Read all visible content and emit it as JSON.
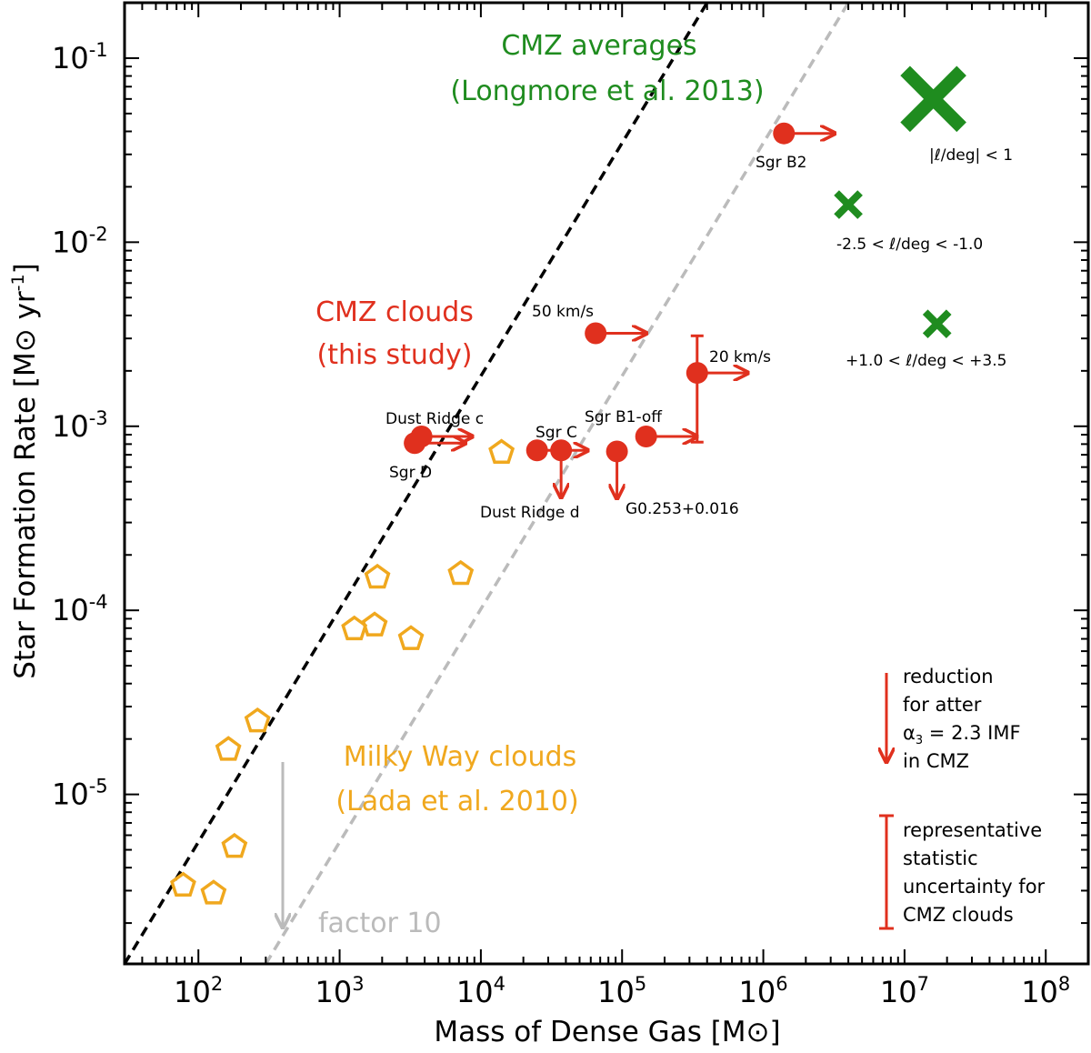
{
  "chart_data": {
    "type": "scatter",
    "xlabel": "Mass of Dense Gas  [M⊙]",
    "ylabel": "Star Formation Rate  [M⊙ yr",
    "ylabel_unit_exp": "-1",
    "ylabel_close": "]",
    "xscale": "log",
    "yscale": "log",
    "xlim": [
      30,
      200000000
    ],
    "ylim": [
      1.2e-06,
      0.2
    ],
    "x_tick_exponents": [
      "2",
      "3",
      "4",
      "5",
      "6",
      "7",
      "8"
    ],
    "y_tick_exponents": [
      "-5",
      "-4",
      "-3",
      "-2",
      "-1"
    ],
    "x_ticks": [
      100,
      1000,
      10000,
      100000,
      1000000,
      10000000,
      100000000
    ],
    "y_ticks": [
      1e-05,
      0.0001,
      0.001,
      0.01,
      0.1
    ],
    "tick_base": "10",
    "lines": [
      {
        "style": "dashed",
        "color": "#000000",
        "x": [
          30,
          400000
        ],
        "y": [
          1.2e-06,
          0.2
        ]
      },
      {
        "style": "dashed",
        "color": "#bbbbbb",
        "x": [
          300,
          4000000
        ],
        "y": [
          1.2e-06,
          0.2
        ]
      }
    ],
    "milky_way_clouds": {
      "color": "#f0a81e",
      "x": [
        78,
        128,
        180,
        163,
        262,
        1270,
        1770,
        1850,
        3200,
        7200,
        14000
      ],
      "y": [
        3.2e-06,
        2.9e-06,
        5.2e-06,
        1.75e-05,
        2.5e-05,
        7.9e-05,
        8.3e-05,
        0.000151,
        7e-05,
        0.000158,
        0.00072
      ]
    },
    "cmz_clouds": {
      "color": "#e0301e",
      "points": [
        {
          "name": "Dust Ridge c",
          "x": 3800,
          "y": 0.00088,
          "arrow": "right"
        },
        {
          "name": "Sgr D",
          "x": 3400,
          "y": 0.00081,
          "arrow": "right"
        },
        {
          "name": "Sgr C",
          "x": 25000,
          "y": 0.00074,
          "arrow": "right"
        },
        {
          "name": "Dust Ridge d",
          "x": 37000,
          "y": 0.00074,
          "arrow": "down"
        },
        {
          "name": "G0.253+0.016",
          "x": 92000,
          "y": 0.00073,
          "arrow": "down"
        },
        {
          "name": "Sgr B1-off",
          "x": 148000,
          "y": 0.00088,
          "arrow": "right"
        },
        {
          "name": "50 km/s",
          "x": 65000,
          "y": 0.0032,
          "arrow": "right"
        },
        {
          "name": "20 km/s",
          "x": 340000,
          "y": 0.00195,
          "arrow": "right",
          "yerr": [
            0.00082,
            0.0031
          ]
        },
        {
          "name": "Sgr B2",
          "x": 1400000,
          "y": 0.039,
          "arrow": "right"
        }
      ]
    },
    "cmz_averages": {
      "color": "#1f8c1f",
      "points": [
        {
          "label": "|ℓ/deg| < 1",
          "x": 16000000,
          "y": 0.06,
          "size": "large"
        },
        {
          "label": "-2.5 < ℓ/deg < -1.0",
          "x": 4000000,
          "y": 0.016,
          "size": "small"
        },
        {
          "label": "+1.0 < ℓ/deg < +3.5",
          "x": 17000000,
          "y": 0.0036,
          "size": "small"
        }
      ]
    },
    "annotations": {
      "cmz_avg_title": [
        "CMZ averages",
        "(Longmore et al. 2013)"
      ],
      "cmz_clouds_title": [
        "CMZ clouds",
        "(this study)"
      ],
      "mw_title": [
        "Milky Way  clouds",
        "(Lada et al. 2010)"
      ],
      "factor": "factor 10",
      "reduction_note": [
        "reduction",
        "for atter",
        "α",
        "3",
        " = 2.3 IMF",
        "in CMZ"
      ],
      "uncertainty_note": [
        "representative",
        "statistic",
        "uncertainty for",
        "CMZ clouds"
      ]
    }
  }
}
